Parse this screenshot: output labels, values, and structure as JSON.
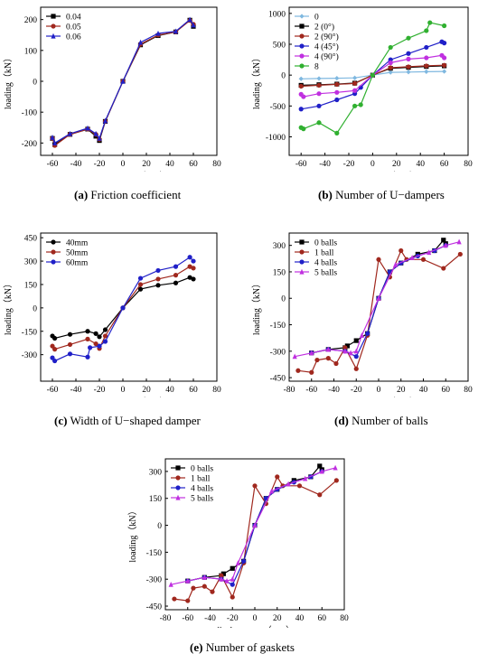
{
  "captions": {
    "a_letter": "(a)",
    "a_text": " Friction coefficient",
    "b_letter": "(b)",
    "b_text": " Number of U−dampers",
    "c_letter": "(c)",
    "c_text": " Width of U−shaped damper",
    "d_letter": "(d)",
    "d_text": " Number of balls",
    "e_letter": "(e)",
    "e_text": " Number of gaskets"
  },
  "chart_data": [
    {
      "id": "a",
      "type": "line",
      "title": "",
      "xlabel": "displacement（mm）",
      "ylabel": "loading（kN）",
      "xlim": [
        -70,
        80
      ],
      "ylim": [
        -240,
        240
      ],
      "xticks": [
        -60,
        -40,
        -20,
        0,
        20,
        40,
        60,
        80
      ],
      "yticks": [
        -200,
        -100,
        0,
        100,
        200
      ],
      "grid": false,
      "legend": "top-left",
      "series": [
        {
          "name": "0.04",
          "color": "#000000",
          "marker": "square",
          "x": [
            -60,
            -58,
            -45,
            -30,
            -23,
            -20,
            -15,
            0,
            15,
            30,
            45,
            57,
            60
          ],
          "y": [
            -185,
            -205,
            -172,
            -155,
            -178,
            -192,
            -130,
            0,
            118,
            148,
            160,
            198,
            178
          ]
        },
        {
          "name": "0.05",
          "color": "#a0281e",
          "marker": "circle",
          "x": [
            -60,
            -58,
            -45,
            -30,
            -23,
            -20,
            -15,
            0,
            15,
            30,
            45,
            57,
            60
          ],
          "y": [
            -185,
            -208,
            -172,
            -155,
            -172,
            -188,
            -130,
            0,
            120,
            150,
            160,
            197,
            185
          ]
        },
        {
          "name": "0.06",
          "color": "#2020c8",
          "marker": "triangle",
          "x": [
            -60,
            -58,
            -45,
            -30,
            -23,
            -20,
            -15,
            0,
            15,
            30,
            45,
            57,
            60
          ],
          "y": [
            -182,
            -200,
            -170,
            -152,
            -170,
            -185,
            -128,
            0,
            126,
            155,
            162,
            200,
            182
          ]
        }
      ]
    },
    {
      "id": "b",
      "type": "line",
      "title": "",
      "xlabel": "displacement（mm）",
      "ylabel": "loading（kN）",
      "xlim": [
        -70,
        80
      ],
      "ylim": [
        -1300,
        1100
      ],
      "xticks": [
        -60,
        -40,
        -20,
        0,
        20,
        40,
        60,
        80
      ],
      "yticks": [
        -1000,
        -500,
        0,
        500,
        1000
      ],
      "grid": false,
      "legend": "top-left",
      "series": [
        {
          "name": "0",
          "color": "#7fb8e0",
          "marker": "diamond",
          "x": [
            -60,
            -45,
            -30,
            -15,
            0,
            15,
            30,
            45,
            60
          ],
          "y": [
            -60,
            -55,
            -50,
            -45,
            0,
            45,
            50,
            55,
            60
          ]
        },
        {
          "name": "2 (0°)",
          "color": "#000000",
          "marker": "square",
          "x": [
            -60,
            -45,
            -30,
            -15,
            0,
            15,
            30,
            45,
            60
          ],
          "y": [
            -165,
            -155,
            -145,
            -130,
            0,
            110,
            125,
            140,
            150
          ]
        },
        {
          "name": "2 (90°)",
          "color": "#a0281e",
          "marker": "circle",
          "x": [
            -60,
            -45,
            -30,
            -15,
            0,
            15,
            30,
            45,
            60
          ],
          "y": [
            -180,
            -165,
            -150,
            -135,
            0,
            120,
            135,
            150,
            160
          ]
        },
        {
          "name": "4 (45°)",
          "color": "#2020c8",
          "marker": "circle",
          "x": [
            -60,
            -45,
            -30,
            -15,
            -10,
            0,
            15,
            30,
            45,
            58,
            60
          ],
          "y": [
            -550,
            -500,
            -400,
            -300,
            -200,
            0,
            250,
            350,
            450,
            540,
            520
          ]
        },
        {
          "name": "4 (90°)",
          "color": "#c030e0",
          "marker": "circle",
          "x": [
            -60,
            -58,
            -45,
            -30,
            -15,
            0,
            15,
            30,
            45,
            58,
            60
          ],
          "y": [
            -310,
            -350,
            -300,
            -280,
            -250,
            0,
            200,
            260,
            280,
            320,
            280
          ]
        },
        {
          "name": "8",
          "color": "#30b030",
          "marker": "circle",
          "x": [
            -60,
            -58,
            -45,
            -30,
            -15,
            -10,
            0,
            15,
            30,
            45,
            48,
            60
          ],
          "y": [
            -850,
            -870,
            -770,
            -940,
            -500,
            -480,
            0,
            450,
            600,
            720,
            850,
            800
          ]
        }
      ]
    },
    {
      "id": "c",
      "type": "line",
      "title": "",
      "xlabel": "displacement（mm）",
      "ylabel": "loading（kN）",
      "xlim": [
        -70,
        80
      ],
      "ylim": [
        -470,
        480
      ],
      "xticks": [
        -60,
        -40,
        -20,
        0,
        20,
        40,
        60,
        80
      ],
      "yticks": [
        -300,
        -150,
        0,
        150,
        300,
        450
      ],
      "grid": false,
      "legend": "top-left",
      "series": [
        {
          "name": "40mm",
          "color": "#000000",
          "marker": "circle",
          "x": [
            -60,
            -58,
            -45,
            -30,
            -23,
            -20,
            -15,
            0,
            15,
            30,
            45,
            57,
            60
          ],
          "y": [
            -180,
            -195,
            -170,
            -150,
            -165,
            -185,
            -140,
            0,
            120,
            145,
            160,
            195,
            185
          ]
        },
        {
          "name": "50mm",
          "color": "#a0281e",
          "marker": "circle",
          "x": [
            -60,
            -58,
            -45,
            -30,
            -23,
            -20,
            -15,
            0,
            15,
            30,
            45,
            57,
            60
          ],
          "y": [
            -245,
            -265,
            -235,
            -200,
            -230,
            -260,
            -180,
            0,
            150,
            185,
            210,
            265,
            255
          ]
        },
        {
          "name": "60mm",
          "color": "#2020c8",
          "marker": "circle",
          "x": [
            -60,
            -58,
            -45,
            -30,
            -28,
            -20,
            -15,
            0,
            15,
            30,
            45,
            57,
            60
          ],
          "y": [
            -320,
            -340,
            -295,
            -315,
            -255,
            -245,
            -215,
            0,
            190,
            240,
            265,
            325,
            300
          ]
        }
      ]
    },
    {
      "id": "d",
      "type": "line",
      "title": "",
      "xlabel": "displacement（mm）",
      "ylabel": "loading（kN）",
      "xlim": [
        -80,
        80
      ],
      "ylim": [
        -470,
        370
      ],
      "xticks": [
        -80,
        -60,
        -40,
        -20,
        0,
        20,
        40,
        60,
        80
      ],
      "yticks": [
        -450,
        -300,
        -150,
        0,
        150,
        300
      ],
      "grid": false,
      "legend": "top-left",
      "series": [
        {
          "name": "0 balls",
          "color": "#000000",
          "marker": "square",
          "x": [
            -60,
            -45,
            -30,
            -28,
            -20,
            -10,
            0,
            10,
            20,
            35,
            50,
            58,
            60
          ],
          "y": [
            -310,
            -290,
            -280,
            -270,
            -240,
            -200,
            0,
            150,
            200,
            250,
            270,
            330,
            310
          ]
        },
        {
          "name": "1 ball",
          "color": "#a0281e",
          "marker": "circle",
          "x": [
            -72,
            -60,
            -55,
            -45,
            -38,
            -30,
            -20,
            -10,
            0,
            10,
            20,
            25,
            40,
            58,
            73
          ],
          "y": [
            -410,
            -420,
            -350,
            -340,
            -370,
            -280,
            -400,
            -210,
            220,
            120,
            270,
            220,
            220,
            170,
            250
          ]
        },
        {
          "name": "4 balls",
          "color": "#2020c8",
          "marker": "circle",
          "x": [
            -60,
            -45,
            -30,
            -20,
            -10,
            0,
            10,
            20,
            35,
            50,
            60
          ],
          "y": [
            -310,
            -290,
            -300,
            -330,
            -200,
            0,
            150,
            200,
            240,
            270,
            300
          ]
        },
        {
          "name": "5 balls",
          "color": "#c030e0",
          "marker": "triangle",
          "x": [
            -75,
            -60,
            -45,
            -30,
            -25,
            -20,
            -15,
            0,
            15,
            30,
            45,
            60,
            72
          ],
          "y": [
            -330,
            -310,
            -290,
            -300,
            -310,
            -300,
            -210,
            0,
            190,
            230,
            260,
            300,
            320
          ]
        }
      ]
    },
    {
      "id": "e",
      "type": "line",
      "title": "",
      "xlabel": "displacement（mm）",
      "ylabel": "loading（kN）",
      "xlim": [
        -80,
        80
      ],
      "ylim": [
        -470,
        370
      ],
      "xticks": [
        -80,
        -60,
        -40,
        -20,
        0,
        20,
        40,
        60,
        80
      ],
      "yticks": [
        -450,
        -300,
        -150,
        0,
        150,
        300
      ],
      "grid": false,
      "legend": "top-left",
      "series": [
        {
          "name": "0 balls",
          "color": "#000000",
          "marker": "square",
          "x": [
            -60,
            -45,
            -30,
            -28,
            -20,
            -10,
            0,
            10,
            20,
            35,
            50,
            58,
            60
          ],
          "y": [
            -310,
            -290,
            -280,
            -270,
            -240,
            -200,
            0,
            150,
            200,
            250,
            270,
            330,
            310
          ]
        },
        {
          "name": "1 ball",
          "color": "#a0281e",
          "marker": "circle",
          "x": [
            -72,
            -60,
            -55,
            -45,
            -38,
            -30,
            -20,
            -10,
            0,
            10,
            20,
            25,
            40,
            58,
            73
          ],
          "y": [
            -410,
            -420,
            -350,
            -340,
            -370,
            -280,
            -400,
            -210,
            220,
            120,
            270,
            220,
            220,
            170,
            250
          ]
        },
        {
          "name": "4 balls",
          "color": "#2020c8",
          "marker": "circle",
          "x": [
            -60,
            -45,
            -30,
            -20,
            -10,
            0,
            10,
            20,
            35,
            50,
            60
          ],
          "y": [
            -310,
            -290,
            -300,
            -330,
            -200,
            0,
            150,
            200,
            240,
            270,
            300
          ]
        },
        {
          "name": "5 balls",
          "color": "#c030e0",
          "marker": "triangle",
          "x": [
            -75,
            -60,
            -45,
            -30,
            -25,
            -20,
            -15,
            0,
            15,
            30,
            45,
            60,
            72
          ],
          "y": [
            -330,
            -310,
            -290,
            -300,
            -310,
            -300,
            -210,
            0,
            190,
            230,
            260,
            300,
            320
          ]
        }
      ]
    }
  ]
}
